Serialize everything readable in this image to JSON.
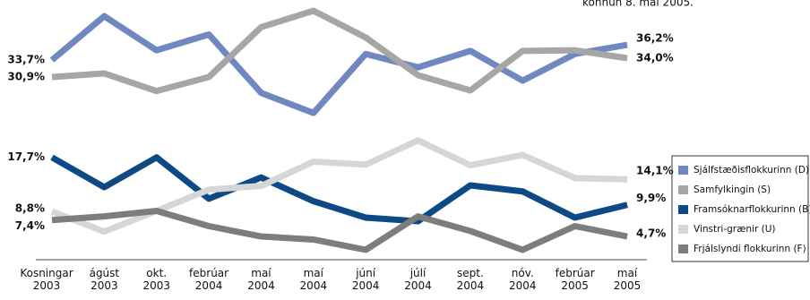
{
  "chart_data": {
    "type": "line",
    "subtitle": "könnun 8. maí 2005.",
    "categories": [
      "Kosningar 2003",
      "ágúst 2003",
      "okt. 2003",
      "febrúar 2004",
      "maí 2004",
      "maí 2004",
      "júní 2004",
      "júlí 2004",
      "sept. 2004",
      "nóv. 2004",
      "febrúar 2005",
      "maí 2005"
    ],
    "series": [
      {
        "name": "Sjálfstæðisflokkurinn (D)",
        "color": "#7088bf",
        "values": [
          33.7,
          40.9,
          35.3,
          37.9,
          28.3,
          25.0,
          34.7,
          32.5,
          35.2,
          30.3,
          34.7,
          36.2
        ],
        "value_labels": [
          "33,7%",
          null,
          null,
          null,
          null,
          null,
          null,
          null,
          null,
          null,
          null,
          "36,2%"
        ]
      },
      {
        "name": "Samfylkingin (S)",
        "color": "#a6a6a6",
        "values": [
          30.9,
          31.5,
          28.6,
          30.9,
          39.1,
          41.8,
          37.4,
          31.2,
          28.7,
          35.2,
          35.3,
          34.0
        ],
        "value_labels": [
          "30,9%",
          null,
          null,
          null,
          null,
          null,
          null,
          null,
          null,
          null,
          null,
          "34,0%"
        ]
      },
      {
        "name": "Framsóknarflokkurinn (B)",
        "color": "#0d4a85",
        "values": [
          17.7,
          12.8,
          17.7,
          10.9,
          14.4,
          10.5,
          7.8,
          7.2,
          13.1,
          12.1,
          7.8,
          9.9
        ],
        "value_labels": [
          "17,7%",
          null,
          null,
          null,
          null,
          null,
          null,
          null,
          null,
          null,
          null,
          "9,9%"
        ]
      },
      {
        "name": "Vinstri-grænir (U)",
        "color": "#d6d6d6",
        "values": [
          8.8,
          5.5,
          8.9,
          12.4,
          13.0,
          17.0,
          16.5,
          20.5,
          16.4,
          18.1,
          14.3,
          14.1
        ],
        "value_labels": [
          "8,8%",
          null,
          null,
          null,
          null,
          null,
          null,
          null,
          null,
          null,
          null,
          "14,1%"
        ]
      },
      {
        "name": "Frjálslyndi flokkurinn (F)",
        "color": "#7d7d7d",
        "values": [
          7.4,
          8.0,
          8.9,
          6.4,
          4.7,
          4.2,
          2.5,
          8.0,
          5.6,
          2.5,
          6.4,
          4.7
        ],
        "value_labels": [
          "7,4%",
          null,
          null,
          null,
          null,
          null,
          null,
          null,
          null,
          null,
          null,
          "4,7%"
        ]
      }
    ]
  }
}
